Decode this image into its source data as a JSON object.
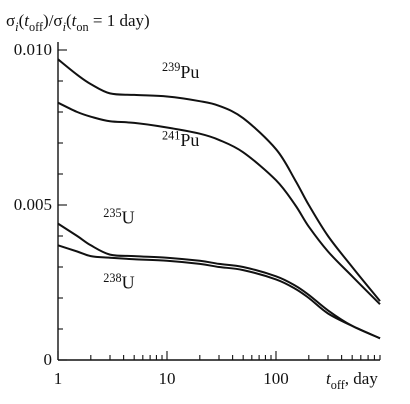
{
  "chart_data": {
    "type": "line",
    "title": "",
    "ylabel_parts": [
      {
        "t": "σ"
      },
      {
        "t": "i",
        "style": "sub-italic"
      },
      {
        "t": "("
      },
      {
        "t": "t",
        "style": "italic"
      },
      {
        "t": "off",
        "style": "sub"
      },
      {
        "t": ")/σ"
      },
      {
        "t": "i",
        "style": "sub-italic"
      },
      {
        "t": "("
      },
      {
        "t": "t",
        "style": "italic"
      },
      {
        "t": "on",
        "style": "sub"
      },
      {
        "t": " = 1 day)"
      }
    ],
    "xlabel_parts": [
      {
        "t": "t",
        "style": "italic"
      },
      {
        "t": "off",
        "style": "sub"
      },
      {
        "t": ", day"
      }
    ],
    "x_scale": "log",
    "xlim": [
      1,
      900
    ],
    "ylim": [
      0,
      0.01
    ],
    "x_ticks": [
      {
        "value": 1,
        "label": "1"
      },
      {
        "value": 10,
        "label": "10"
      },
      {
        "value": 100,
        "label": "100"
      }
    ],
    "y_ticks": [
      {
        "value": 0,
        "label": "0"
      },
      {
        "value": 0.005,
        "label": "0.005"
      },
      {
        "value": 0.01,
        "label": "0.010"
      }
    ],
    "series": [
      {
        "name_parts": [
          {
            "t": "239",
            "style": "sup"
          },
          {
            "t": "Pu"
          }
        ],
        "label_at": {
          "x": 9,
          "y": 0.0091
        },
        "x": [
          1,
          1.5,
          2,
          3,
          5,
          10,
          20,
          30,
          50,
          100,
          150,
          200,
          300,
          500,
          900
        ],
        "y": [
          0.0097,
          0.0092,
          0.0089,
          0.0086,
          0.00855,
          0.0085,
          0.00835,
          0.0082,
          0.0078,
          0.0068,
          0.0058,
          0.005,
          0.004,
          0.003,
          0.0019
        ]
      },
      {
        "name_parts": [
          {
            "t": "241",
            "style": "sup"
          },
          {
            "t": "Pu"
          }
        ],
        "label_at": {
          "x": 9,
          "y": 0.0069
        },
        "x": [
          1,
          1.5,
          2,
          3,
          5,
          10,
          20,
          30,
          50,
          100,
          150,
          200,
          300,
          500,
          900
        ],
        "y": [
          0.0083,
          0.008,
          0.00785,
          0.0077,
          0.00765,
          0.0075,
          0.0073,
          0.0071,
          0.0067,
          0.0058,
          0.005,
          0.0043,
          0.0035,
          0.0027,
          0.0018
        ]
      },
      {
        "name_parts": [
          {
            "t": "235",
            "style": "sup"
          },
          {
            "t": "U"
          }
        ],
        "label_at": {
          "x": 2.6,
          "y": 0.0044
        },
        "x": [
          1,
          1.5,
          2,
          3,
          5,
          10,
          20,
          30,
          50,
          100,
          150,
          200,
          300,
          500,
          900
        ],
        "y": [
          0.0044,
          0.004,
          0.0037,
          0.0034,
          0.00335,
          0.0033,
          0.0032,
          0.0031,
          0.003,
          0.0027,
          0.0024,
          0.0021,
          0.0016,
          0.0011,
          0.0007
        ]
      },
      {
        "name_parts": [
          {
            "t": "238",
            "style": "sup"
          },
          {
            "t": "U"
          }
        ],
        "label_at": {
          "x": 2.6,
          "y": 0.0023
        },
        "x": [
          1,
          1.5,
          2,
          3,
          5,
          10,
          20,
          30,
          50,
          100,
          150,
          200,
          300,
          500,
          900
        ],
        "y": [
          0.0037,
          0.0035,
          0.00335,
          0.0033,
          0.00325,
          0.0032,
          0.0031,
          0.003,
          0.0029,
          0.0026,
          0.0023,
          0.002,
          0.0015,
          0.0011,
          0.0007
        ]
      }
    ],
    "grid": false,
    "legend": "none"
  }
}
